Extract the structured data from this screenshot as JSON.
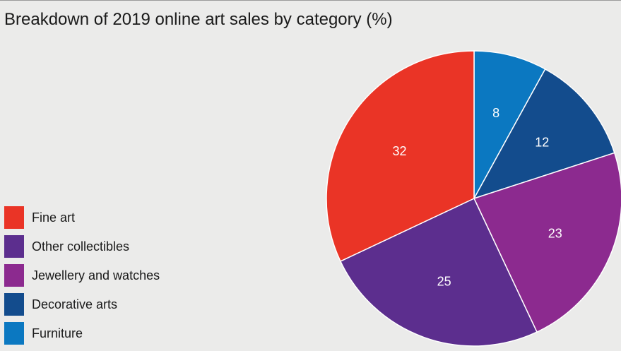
{
  "chart_data": {
    "type": "pie",
    "title": "Breakdown of 2019 online art sales by category (%)",
    "categories": [
      "Fine art",
      "Other collectibles",
      "Jewellery and watches",
      "Decorative arts",
      "Furniture"
    ],
    "values": [
      32,
      25,
      23,
      12,
      8
    ],
    "colors": [
      "#ea3426",
      "#5c2e8e",
      "#8c2a8f",
      "#134c8d",
      "#0b78c1"
    ],
    "legend_position": "bottom-left",
    "data_labels": true
  }
}
